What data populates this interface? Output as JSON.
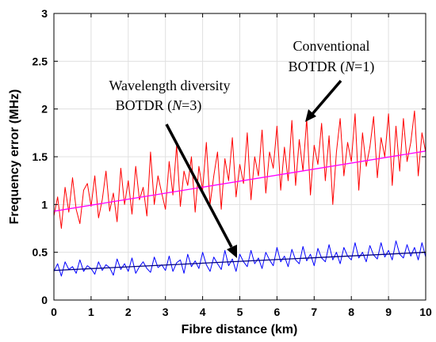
{
  "chart_data": {
    "type": "line",
    "xlabel": "Fibre distance (km)",
    "ylabel": "Frequency error (MHz)",
    "xlim": [
      0,
      10
    ],
    "ylim": [
      0,
      3
    ],
    "xticks": [
      "0",
      "1",
      "2",
      "3",
      "4",
      "5",
      "6",
      "7",
      "8",
      "9",
      "10"
    ],
    "yticks": [
      "0",
      "0.5",
      "1",
      "1.5",
      "2",
      "2.5",
      "3"
    ],
    "grid": true,
    "annotations": {
      "conventional_line1": "Conventional",
      "conventional_line2_prefix": "BOTDR (",
      "conventional_line2_var": "N",
      "conventional_line2_suffix": "=1)",
      "diversity_line1": "Wavelength diversity",
      "diversity_line2_prefix": "BOTDR (",
      "diversity_line2_var": "N",
      "diversity_line2_suffix": "=3)"
    },
    "series": [
      {
        "color": "#ff0000",
        "x": [
          0,
          0.1,
          0.2,
          0.3,
          0.4,
          0.5,
          0.6,
          0.7,
          0.8,
          0.9,
          1.0,
          1.1,
          1.2,
          1.3,
          1.4,
          1.5,
          1.6,
          1.7,
          1.8,
          1.9,
          2.0,
          2.1,
          2.2,
          2.3,
          2.4,
          2.5,
          2.6,
          2.7,
          2.8,
          2.9,
          3.0,
          3.1,
          3.2,
          3.3,
          3.4,
          3.5,
          3.6,
          3.7,
          3.8,
          3.9,
          4.0,
          4.1,
          4.2,
          4.3,
          4.4,
          4.5,
          4.6,
          4.7,
          4.8,
          4.9,
          5.0,
          5.1,
          5.2,
          5.3,
          5.4,
          5.5,
          5.6,
          5.7,
          5.8,
          5.9,
          6.0,
          6.1,
          6.2,
          6.3,
          6.4,
          6.5,
          6.6,
          6.7,
          6.8,
          6.9,
          7.0,
          7.1,
          7.2,
          7.3,
          7.4,
          7.5,
          7.6,
          7.7,
          7.8,
          7.9,
          8.0,
          8.1,
          8.2,
          8.3,
          8.4,
          8.5,
          8.6,
          8.7,
          8.8,
          8.9,
          9.0,
          9.1,
          9.2,
          9.3,
          9.4,
          9.5,
          9.6,
          9.7,
          9.8,
          9.9,
          10.0
        ],
        "y": [
          0.88,
          1.08,
          0.75,
          1.18,
          0.92,
          1.28,
          0.95,
          0.8,
          1.15,
          1.22,
          0.98,
          1.3,
          0.86,
          1.05,
          1.35,
          0.93,
          1.12,
          0.82,
          1.38,
          1.0,
          1.25,
          0.9,
          1.4,
          1.05,
          1.18,
          0.88,
          1.55,
          1.0,
          1.3,
          1.12,
          0.95,
          1.45,
          1.1,
          1.62,
          0.98,
          1.35,
          1.2,
          1.5,
          0.92,
          1.4,
          1.15,
          1.65,
          1.0,
          1.3,
          1.55,
          0.95,
          1.48,
          1.25,
          1.7,
          1.08,
          1.42,
          1.22,
          1.75,
          1.05,
          1.5,
          1.3,
          1.78,
          1.12,
          1.55,
          1.38,
          1.82,
          1.15,
          1.6,
          1.25,
          1.88,
          1.2,
          1.68,
          1.35,
          1.9,
          1.1,
          1.62,
          1.42,
          1.85,
          1.25,
          1.72,
          1.0,
          1.55,
          1.9,
          1.3,
          1.65,
          1.45,
          1.95,
          1.15,
          1.75,
          1.4,
          1.6,
          1.92,
          1.28,
          1.7,
          1.5,
          1.95,
          1.2,
          1.82,
          1.35,
          1.9,
          1.45,
          1.65,
          1.98,
          1.3,
          1.75,
          1.55
        ]
      },
      {
        "color": "#ff00ff",
        "x": [
          0,
          10
        ],
        "y": [
          0.93,
          1.56
        ]
      },
      {
        "color": "#0000ff",
        "x": [
          0,
          0.1,
          0.2,
          0.3,
          0.4,
          0.5,
          0.6,
          0.7,
          0.8,
          0.9,
          1.0,
          1.1,
          1.2,
          1.3,
          1.4,
          1.5,
          1.6,
          1.7,
          1.8,
          1.9,
          2.0,
          2.1,
          2.2,
          2.3,
          2.4,
          2.5,
          2.6,
          2.7,
          2.8,
          2.9,
          3.0,
          3.1,
          3.2,
          3.3,
          3.4,
          3.5,
          3.6,
          3.7,
          3.8,
          3.9,
          4.0,
          4.1,
          4.2,
          4.3,
          4.4,
          4.5,
          4.6,
          4.7,
          4.8,
          4.9,
          5.0,
          5.1,
          5.2,
          5.3,
          5.4,
          5.5,
          5.6,
          5.7,
          5.8,
          5.9,
          6.0,
          6.1,
          6.2,
          6.3,
          6.4,
          6.5,
          6.6,
          6.7,
          6.8,
          6.9,
          7.0,
          7.1,
          7.2,
          7.3,
          7.4,
          7.5,
          7.6,
          7.7,
          7.8,
          7.9,
          8.0,
          8.1,
          8.2,
          8.3,
          8.4,
          8.5,
          8.6,
          8.7,
          8.8,
          8.9,
          9.0,
          9.1,
          9.2,
          9.3,
          9.4,
          9.5,
          9.6,
          9.7,
          9.8,
          9.9,
          10.0
        ],
        "y": [
          0.3,
          0.38,
          0.25,
          0.4,
          0.32,
          0.35,
          0.28,
          0.42,
          0.3,
          0.36,
          0.33,
          0.27,
          0.4,
          0.31,
          0.37,
          0.34,
          0.26,
          0.43,
          0.32,
          0.38,
          0.3,
          0.44,
          0.28,
          0.35,
          0.4,
          0.33,
          0.29,
          0.45,
          0.34,
          0.37,
          0.31,
          0.46,
          0.3,
          0.39,
          0.42,
          0.28,
          0.48,
          0.35,
          0.41,
          0.33,
          0.5,
          0.37,
          0.3,
          0.45,
          0.38,
          0.32,
          0.52,
          0.36,
          0.43,
          0.3,
          0.48,
          0.4,
          0.35,
          0.52,
          0.38,
          0.44,
          0.33,
          0.5,
          0.42,
          0.36,
          0.55,
          0.4,
          0.46,
          0.35,
          0.53,
          0.42,
          0.38,
          0.56,
          0.41,
          0.48,
          0.36,
          0.54,
          0.44,
          0.4,
          0.58,
          0.42,
          0.5,
          0.38,
          0.55,
          0.46,
          0.42,
          0.6,
          0.44,
          0.5,
          0.4,
          0.57,
          0.47,
          0.43,
          0.6,
          0.45,
          0.52,
          0.42,
          0.62,
          0.48,
          0.44,
          0.58,
          0.46,
          0.55,
          0.42,
          0.6,
          0.45
        ]
      },
      {
        "color": "#000080",
        "x": [
          0,
          10
        ],
        "y": [
          0.31,
          0.5
        ]
      }
    ]
  }
}
